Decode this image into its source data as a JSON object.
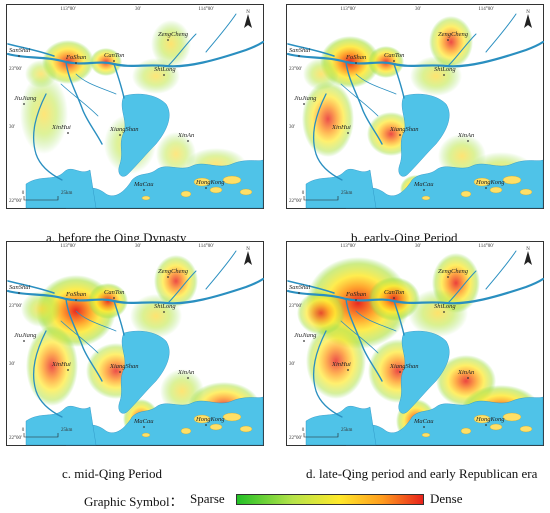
{
  "panels": [
    {
      "id": "a",
      "caption": "a. before the Qing Dynasty",
      "places": {
        "zengcheng": "ZengCheng",
        "sanshui": "SanShui",
        "foshan": "FoShan",
        "canton": "CanTon",
        "shilong": "ShiLong",
        "jiujiang": "JiuJiang",
        "xinhui": "XinHui",
        "xiangshan": "XiangShan",
        "xinan": "XinAn",
        "macau": "MaCau",
        "hongkong": "HongKong"
      }
    },
    {
      "id": "b",
      "caption": "b. early-Qing Period",
      "places": {
        "zengcheng": "ZengCheng",
        "sanshui": "SanShui",
        "foshan": "FoShan",
        "canton": "CanTon",
        "shilong": "ShiLong",
        "jiujiang": "JiuJiang",
        "xinhui": "XinHui",
        "xiangshan": "XiangShan",
        "xinan": "XinAn",
        "macau": "MaCau",
        "hongkong": "HongKong"
      }
    },
    {
      "id": "c",
      "caption": "c. mid-Qing Period",
      "places": {
        "zengcheng": "ZengCheng",
        "sanshui": "SanShui",
        "foshan": "FoShan",
        "canton": "CanTon",
        "shilong": "ShiLong",
        "jiujiang": "JiuJiang",
        "xinhui": "XinHui",
        "xiangshan": "XiangShan",
        "xinan": "XinAn",
        "macau": "MaCau",
        "hongkong": "HongKong"
      }
    },
    {
      "id": "d",
      "caption": "d. late-Qing period and early Republican era",
      "places": {
        "zengcheng": "ZengCheng",
        "sanshui": "SanShui",
        "foshan": "FoShan",
        "canton": "CanTon",
        "shilong": "ShiLong",
        "jiujiang": "JiuJiang",
        "xinhui": "XinHui",
        "xiangshan": "XiangShan",
        "xinan": "XinAn",
        "macau": "MaCau",
        "hongkong": "HongKong"
      }
    }
  ],
  "graticule": {
    "lon_left": "113°00'",
    "lon_mid": "30'",
    "lon_right": "114°00'",
    "lat_top": "23°00'",
    "lat_mid": "30'",
    "lat_bottom": "22°00'"
  },
  "scalebar": {
    "zero": "0",
    "length": "25km"
  },
  "north": "N",
  "legend": {
    "title": "Graphic Symbol：",
    "low": "Sparse",
    "high": "Dense"
  },
  "colors": {
    "water": "#4fc3e8",
    "sparse": "#22c026",
    "dense": "#e8221c"
  }
}
